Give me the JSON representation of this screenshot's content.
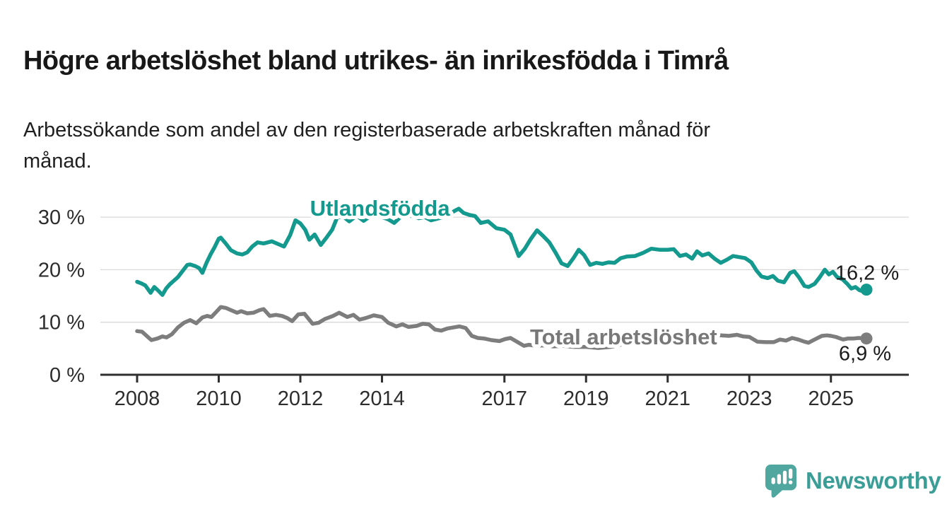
{
  "title": "Högre arbetslöshet bland utrikes- än inrikesfödda i Timrå",
  "subtitle_lines": [
    "Arbetssökande som andel av den registerbaserade arbetskraften månad för",
    "månad."
  ],
  "branding": {
    "logo_text": "Newsworthy"
  },
  "colors": {
    "background": "#ffffff",
    "grid": "#d9d9d9",
    "axis": "#2f2f2f",
    "tick_label": "#2d2d2d",
    "end_label": "#1b1b1b",
    "teal": "#13998d",
    "gray": "#7d7d7d",
    "logo_icon": "#4fa7a0",
    "logo_text": "#3a9e97"
  },
  "chart_data": {
    "type": "line",
    "title": "Högre arbetslöshet bland utrikes- än inrikesfödda i Timrå",
    "subtitle": "Arbetssökande som andel av den registerbaserade arbetskraften månad för månad.",
    "xlabel": "",
    "ylabel": "",
    "grid": "horizontal",
    "x_axis": {
      "range_years": [
        2007.1,
        2027.0
      ],
      "ticks": [
        {
          "value": 2008,
          "label": "2008"
        },
        {
          "value": 2010,
          "label": "2010"
        },
        {
          "value": 2012,
          "label": "2012"
        },
        {
          "value": 2014,
          "label": "2014"
        },
        {
          "value": 2017,
          "label": "2017"
        },
        {
          "value": 2019,
          "label": "2019"
        },
        {
          "value": 2021,
          "label": "2021"
        },
        {
          "value": 2023,
          "label": "2023"
        },
        {
          "value": 2025,
          "label": "2025"
        }
      ]
    },
    "y_axis": {
      "range": [
        0,
        32
      ],
      "unit": "%",
      "ticks": [
        {
          "value": 0,
          "label": "0 %"
        },
        {
          "value": 10,
          "label": "10 %"
        },
        {
          "value": 20,
          "label": "20 %"
        },
        {
          "value": 30,
          "label": "30 %"
        }
      ]
    },
    "series": [
      {
        "id": "utlandsfodda",
        "name": "Utlandsfödda",
        "color": "#13998d",
        "end_label": "16,2 %",
        "end_value": 16.2,
        "end_label_offset": [
          1,
          -14
        ],
        "label_at": [
          2013.95,
          30.28
        ],
        "points": [
          [
            2008.0,
            17.7
          ],
          [
            2008.1,
            17.4
          ],
          [
            2008.2,
            17.0
          ],
          [
            2008.33,
            15.6
          ],
          [
            2008.42,
            16.7
          ],
          [
            2008.52,
            16.0
          ],
          [
            2008.62,
            15.2
          ],
          [
            2008.71,
            16.4
          ],
          [
            2008.8,
            17.2
          ],
          [
            2008.9,
            17.9
          ],
          [
            2009.0,
            18.6
          ],
          [
            2009.1,
            19.6
          ],
          [
            2009.23,
            20.9
          ],
          [
            2009.3,
            21.0
          ],
          [
            2009.42,
            20.7
          ],
          [
            2009.52,
            20.3
          ],
          [
            2009.6,
            19.4
          ],
          [
            2009.7,
            21.3
          ],
          [
            2009.8,
            22.9
          ],
          [
            2009.9,
            24.3
          ],
          [
            2010.0,
            25.9
          ],
          [
            2010.05,
            26.1
          ],
          [
            2010.18,
            24.9
          ],
          [
            2010.3,
            23.7
          ],
          [
            2010.45,
            23.1
          ],
          [
            2010.58,
            22.9
          ],
          [
            2010.7,
            23.3
          ],
          [
            2010.82,
            24.4
          ],
          [
            2010.95,
            25.2
          ],
          [
            2011.1,
            25.0
          ],
          [
            2011.3,
            25.4
          ],
          [
            2011.45,
            24.9
          ],
          [
            2011.6,
            24.4
          ],
          [
            2011.75,
            26.6
          ],
          [
            2011.88,
            29.4
          ],
          [
            2012.0,
            28.8
          ],
          [
            2012.12,
            27.6
          ],
          [
            2012.22,
            25.7
          ],
          [
            2012.35,
            26.7
          ],
          [
            2012.5,
            24.7
          ],
          [
            2012.65,
            26.2
          ],
          [
            2012.78,
            27.6
          ],
          [
            2012.9,
            29.9
          ],
          [
            2013.05,
            30.1
          ],
          [
            2013.2,
            29.2
          ],
          [
            2013.38,
            30.3
          ],
          [
            2013.55,
            29.3
          ],
          [
            2013.7,
            30.1
          ],
          [
            2013.85,
            30.3
          ],
          [
            2014.0,
            30.0
          ],
          [
            2014.15,
            29.6
          ],
          [
            2014.3,
            28.9
          ],
          [
            2014.45,
            30.0
          ],
          [
            2014.6,
            30.3
          ],
          [
            2014.75,
            30.2
          ],
          [
            2014.9,
            29.8
          ],
          [
            2015.05,
            30.0
          ],
          [
            2015.2,
            29.4
          ],
          [
            2015.35,
            29.7
          ],
          [
            2015.5,
            30.0
          ],
          [
            2015.65,
            30.6
          ],
          [
            2015.78,
            31.2
          ],
          [
            2015.88,
            31.6
          ],
          [
            2016.0,
            30.8
          ],
          [
            2016.15,
            30.4
          ],
          [
            2016.28,
            30.2
          ],
          [
            2016.42,
            28.9
          ],
          [
            2016.6,
            29.2
          ],
          [
            2016.8,
            27.9
          ],
          [
            2017.0,
            27.6
          ],
          [
            2017.15,
            26.7
          ],
          [
            2017.35,
            22.6
          ],
          [
            2017.5,
            24.0
          ],
          [
            2017.65,
            25.9
          ],
          [
            2017.8,
            27.5
          ],
          [
            2017.95,
            26.4
          ],
          [
            2018.1,
            25.2
          ],
          [
            2018.25,
            23.3
          ],
          [
            2018.4,
            21.2
          ],
          [
            2018.55,
            20.7
          ],
          [
            2018.7,
            22.3
          ],
          [
            2018.82,
            23.8
          ],
          [
            2018.95,
            22.8
          ],
          [
            2019.1,
            20.9
          ],
          [
            2019.25,
            21.3
          ],
          [
            2019.4,
            21.1
          ],
          [
            2019.55,
            21.4
          ],
          [
            2019.7,
            21.3
          ],
          [
            2019.85,
            22.2
          ],
          [
            2020.0,
            22.5
          ],
          [
            2020.2,
            22.6
          ],
          [
            2020.4,
            23.2
          ],
          [
            2020.6,
            24.0
          ],
          [
            2020.8,
            23.8
          ],
          [
            2021.0,
            23.8
          ],
          [
            2021.15,
            23.9
          ],
          [
            2021.3,
            22.6
          ],
          [
            2021.45,
            22.9
          ],
          [
            2021.6,
            22.1
          ],
          [
            2021.72,
            23.5
          ],
          [
            2021.85,
            22.7
          ],
          [
            2022.0,
            23.1
          ],
          [
            2022.15,
            22.1
          ],
          [
            2022.3,
            21.3
          ],
          [
            2022.45,
            21.9
          ],
          [
            2022.6,
            22.6
          ],
          [
            2022.75,
            22.4
          ],
          [
            2022.9,
            22.2
          ],
          [
            2023.05,
            21.4
          ],
          [
            2023.18,
            19.8
          ],
          [
            2023.3,
            18.7
          ],
          [
            2023.45,
            18.4
          ],
          [
            2023.58,
            18.8
          ],
          [
            2023.7,
            17.9
          ],
          [
            2023.85,
            17.6
          ],
          [
            2024.0,
            19.4
          ],
          [
            2024.1,
            19.7
          ],
          [
            2024.22,
            18.5
          ],
          [
            2024.35,
            16.9
          ],
          [
            2024.45,
            16.7
          ],
          [
            2024.6,
            17.3
          ],
          [
            2024.72,
            18.5
          ],
          [
            2024.85,
            20.0
          ],
          [
            2024.95,
            19.1
          ],
          [
            2025.05,
            19.6
          ],
          [
            2025.15,
            18.6
          ],
          [
            2025.28,
            18.2
          ],
          [
            2025.4,
            17.3
          ],
          [
            2025.5,
            16.4
          ],
          [
            2025.6,
            16.7
          ],
          [
            2025.7,
            16.1
          ],
          [
            2025.78,
            15.9
          ],
          [
            2025.87,
            16.2
          ]
        ]
      },
      {
        "id": "total-arbetsloshet",
        "name": "Total arbetslöshet",
        "color": "#7d7d7d",
        "label_color": "#787878",
        "end_label": "6,9 %",
        "end_value": 6.9,
        "end_label_offset": [
          -2,
          31
        ],
        "label_at": [
          2019.92,
          5.79
        ],
        "points": [
          [
            2008.0,
            8.3
          ],
          [
            2008.12,
            8.2
          ],
          [
            2008.25,
            7.3
          ],
          [
            2008.35,
            6.6
          ],
          [
            2008.5,
            6.9
          ],
          [
            2008.62,
            7.3
          ],
          [
            2008.72,
            7.1
          ],
          [
            2008.85,
            7.7
          ],
          [
            2009.0,
            9.0
          ],
          [
            2009.15,
            9.9
          ],
          [
            2009.3,
            10.4
          ],
          [
            2009.45,
            9.8
          ],
          [
            2009.6,
            10.9
          ],
          [
            2009.72,
            11.2
          ],
          [
            2009.82,
            11.0
          ],
          [
            2009.93,
            11.9
          ],
          [
            2010.05,
            12.9
          ],
          [
            2010.18,
            12.7
          ],
          [
            2010.3,
            12.3
          ],
          [
            2010.45,
            11.8
          ],
          [
            2010.55,
            12.1
          ],
          [
            2010.7,
            11.7
          ],
          [
            2010.85,
            11.8
          ],
          [
            2011.0,
            12.3
          ],
          [
            2011.1,
            12.5
          ],
          [
            2011.25,
            11.2
          ],
          [
            2011.4,
            11.4
          ],
          [
            2011.55,
            11.2
          ],
          [
            2011.68,
            10.8
          ],
          [
            2011.8,
            10.2
          ],
          [
            2011.95,
            11.5
          ],
          [
            2012.1,
            11.6
          ],
          [
            2012.3,
            9.7
          ],
          [
            2012.45,
            9.9
          ],
          [
            2012.6,
            10.6
          ],
          [
            2012.8,
            11.2
          ],
          [
            2012.95,
            11.8
          ],
          [
            2013.15,
            11.0
          ],
          [
            2013.3,
            11.4
          ],
          [
            2013.45,
            10.5
          ],
          [
            2013.6,
            10.8
          ],
          [
            2013.8,
            11.3
          ],
          [
            2014.0,
            11.0
          ],
          [
            2014.15,
            9.9
          ],
          [
            2014.35,
            9.2
          ],
          [
            2014.5,
            9.6
          ],
          [
            2014.65,
            9.1
          ],
          [
            2014.85,
            9.3
          ],
          [
            2015.0,
            9.7
          ],
          [
            2015.15,
            9.6
          ],
          [
            2015.3,
            8.6
          ],
          [
            2015.45,
            8.4
          ],
          [
            2015.6,
            8.8
          ],
          [
            2015.75,
            9.0
          ],
          [
            2015.9,
            9.2
          ],
          [
            2016.05,
            8.9
          ],
          [
            2016.2,
            7.4
          ],
          [
            2016.35,
            7.0
          ],
          [
            2016.5,
            6.9
          ],
          [
            2016.68,
            6.6
          ],
          [
            2016.88,
            6.4
          ],
          [
            2017.02,
            6.8
          ],
          [
            2017.15,
            7.0
          ],
          [
            2017.35,
            6.1
          ],
          [
            2017.48,
            5.5
          ],
          [
            2017.6,
            5.7
          ],
          [
            2017.78,
            5.5
          ],
          [
            2018.0,
            5.6
          ],
          [
            2018.2,
            5.4
          ],
          [
            2018.45,
            5.5
          ],
          [
            2018.7,
            5.3
          ],
          [
            2019.0,
            5.3
          ],
          [
            2019.3,
            5.1
          ],
          [
            2019.6,
            5.3
          ],
          [
            2019.8,
            5.6
          ],
          [
            2020.0,
            6.1
          ],
          [
            2020.2,
            7.5
          ],
          [
            2020.4,
            8.0
          ],
          [
            2020.6,
            8.1
          ],
          [
            2020.8,
            7.9
          ],
          [
            2021.0,
            7.8
          ],
          [
            2021.2,
            7.7
          ],
          [
            2021.45,
            7.5
          ],
          [
            2021.7,
            7.4
          ],
          [
            2021.9,
            7.5
          ],
          [
            2022.1,
            7.5
          ],
          [
            2022.3,
            7.5
          ],
          [
            2022.5,
            7.4
          ],
          [
            2022.7,
            7.6
          ],
          [
            2022.85,
            7.3
          ],
          [
            2023.0,
            7.2
          ],
          [
            2023.2,
            6.3
          ],
          [
            2023.4,
            6.2
          ],
          [
            2023.6,
            6.2
          ],
          [
            2023.75,
            6.7
          ],
          [
            2023.9,
            6.5
          ],
          [
            2024.05,
            7.0
          ],
          [
            2024.2,
            6.7
          ],
          [
            2024.35,
            6.3
          ],
          [
            2024.45,
            6.1
          ],
          [
            2024.6,
            6.7
          ],
          [
            2024.78,
            7.4
          ],
          [
            2024.9,
            7.5
          ],
          [
            2025.0,
            7.4
          ],
          [
            2025.12,
            7.2
          ],
          [
            2025.3,
            6.7
          ],
          [
            2025.42,
            6.9
          ],
          [
            2025.55,
            6.9
          ],
          [
            2025.68,
            7.0
          ],
          [
            2025.87,
            6.9
          ]
        ]
      }
    ]
  }
}
